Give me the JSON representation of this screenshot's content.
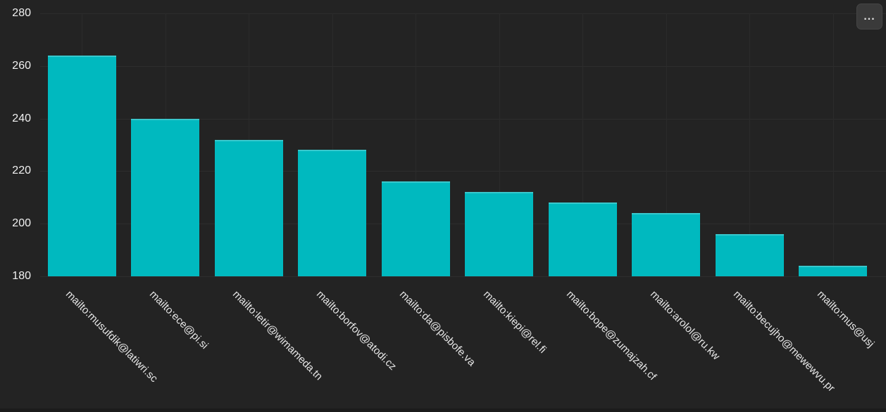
{
  "panel": {
    "background_color": "#232323",
    "grid_color": "#2d2d2d",
    "text_color": "#f0f0f0",
    "more_button": {
      "icon": "ellipsis-icon",
      "glyph": "..."
    }
  },
  "chart_data": {
    "type": "bar",
    "title": "",
    "xlabel": "",
    "ylabel": "",
    "categories": [
      "mailto:musufdik@latiwri.sc",
      "mailto:ece@pi.si",
      "mailto:letir@wimameda.tn",
      "mailto:borfov@atodi.cz",
      "mailto:da@pisbofe.va",
      "mailto:kiepi@rel.fi",
      "mailto:bope@zumajzah.cf",
      "mailto:arolol@ru.kw",
      "mailto:becujho@mewewvu.pr",
      "mailto:mus@usj"
    ],
    "values": [
      264,
      240,
      232,
      228,
      216,
      212,
      208,
      204,
      196,
      184
    ],
    "bar_color": "#00b9bf",
    "ylim": [
      180,
      280
    ],
    "yticks": [
      180,
      200,
      220,
      240,
      260,
      280
    ],
    "grid": true,
    "legend_position": "none",
    "x_label_rotation_deg": 45
  }
}
